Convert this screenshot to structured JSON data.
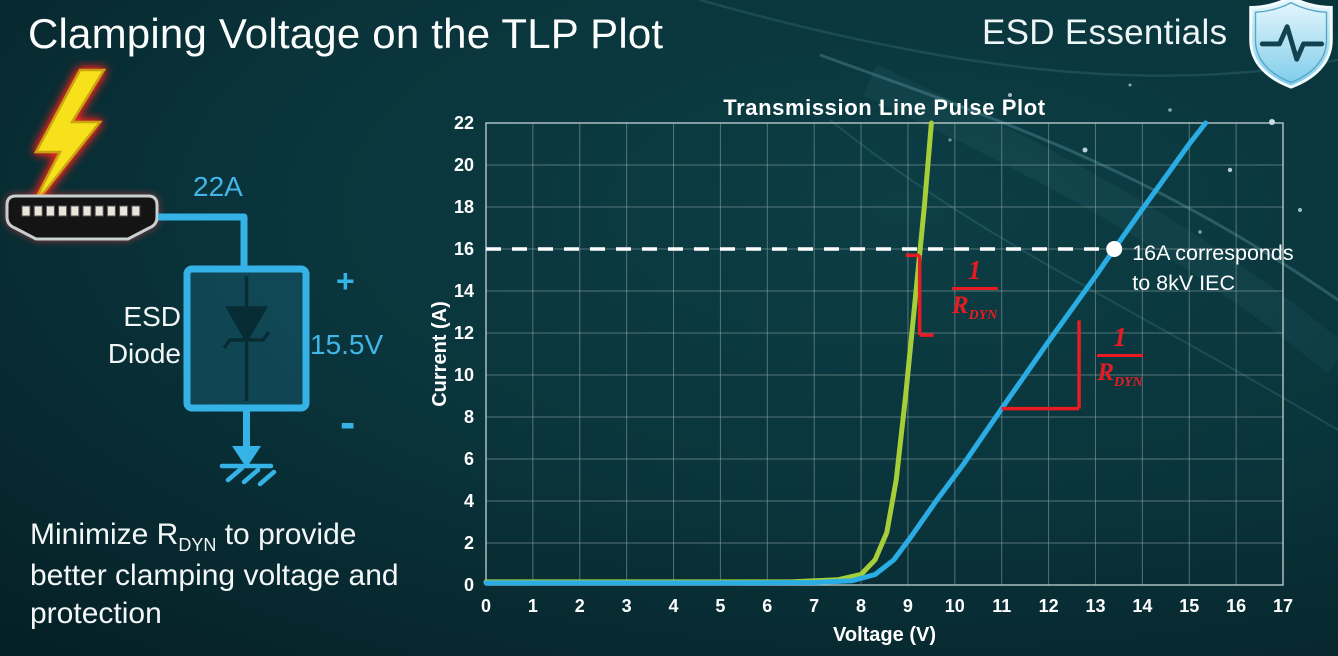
{
  "slide": {
    "title": "Clamping Voltage on the TLP Plot",
    "brand": "ESD Essentials"
  },
  "diagram": {
    "surge_current": "22A",
    "device_label_line1": "ESD",
    "device_label_line2": "Diode",
    "plus": "+",
    "clamp_voltage": "15.5V",
    "minus": "-",
    "icons": [
      "lightning-bolt-icon",
      "hdmi-connector-icon",
      "zener-diode-symbol",
      "ground-symbol"
    ],
    "accent_color": "#35b3e6"
  },
  "note": {
    "pre": "Minimize R",
    "sub": "DYN",
    "post": " to provide better clamping voltage and protection"
  },
  "chart_data": {
    "type": "line",
    "title": "Transmission Line Pulse Plot",
    "xlabel": "Voltage (V)",
    "ylabel": "Current (A)",
    "xlim": [
      0,
      17
    ],
    "ylim": [
      0,
      22
    ],
    "xtick_step": 1,
    "ytick_step": 2,
    "grid": true,
    "legend": "none",
    "series": [
      {
        "name": "low-rdyn-diode-green",
        "color": "#a6ce39",
        "points": [
          [
            0,
            0.15
          ],
          [
            4,
            0.15
          ],
          [
            6.5,
            0.15
          ],
          [
            7.5,
            0.25
          ],
          [
            8.0,
            0.5
          ],
          [
            8.3,
            1.2
          ],
          [
            8.55,
            2.5
          ],
          [
            8.75,
            5
          ],
          [
            8.95,
            9
          ],
          [
            9.15,
            13.5
          ],
          [
            9.35,
            18
          ],
          [
            9.5,
            22
          ]
        ]
      },
      {
        "name": "high-rdyn-diode-blue",
        "color": "#2aade4",
        "points": [
          [
            0,
            0.1
          ],
          [
            5,
            0.1
          ],
          [
            7,
            0.12
          ],
          [
            7.8,
            0.2
          ],
          [
            8.3,
            0.5
          ],
          [
            8.7,
            1.2
          ],
          [
            9.1,
            2.4
          ],
          [
            9.6,
            4.0
          ],
          [
            10.2,
            5.8
          ],
          [
            11,
            8.4
          ],
          [
            12,
            11.6
          ],
          [
            13,
            14.7
          ],
          [
            13.4,
            16
          ],
          [
            14,
            17.9
          ],
          [
            15,
            21.0
          ],
          [
            15.35,
            22
          ]
        ]
      }
    ],
    "reference_line": {
      "y": 16,
      "x_start": 0,
      "x_end": 13.4,
      "style": "dashed",
      "color": "#ffffff"
    },
    "marker": {
      "x": 13.4,
      "y": 16,
      "label_lines": [
        "16A corresponds",
        "to 8kV IEC"
      ]
    },
    "slope_annotations": [
      {
        "shape": "vertical-bracket",
        "x": 9.25,
        "y_top": 15.7,
        "y_bottom": 11.9,
        "color": "#e81b23",
        "label": {
          "numerator": "1",
          "denominator_base": "R",
          "denominator_sub": "DYN"
        }
      },
      {
        "shape": "right-angle",
        "x1": 11.0,
        "x2": 12.65,
        "y1": 8.4,
        "y2": 12.6,
        "color": "#e81b23",
        "label": {
          "numerator": "1",
          "denominator_base": "R",
          "denominator_sub": "DYN"
        }
      }
    ]
  }
}
